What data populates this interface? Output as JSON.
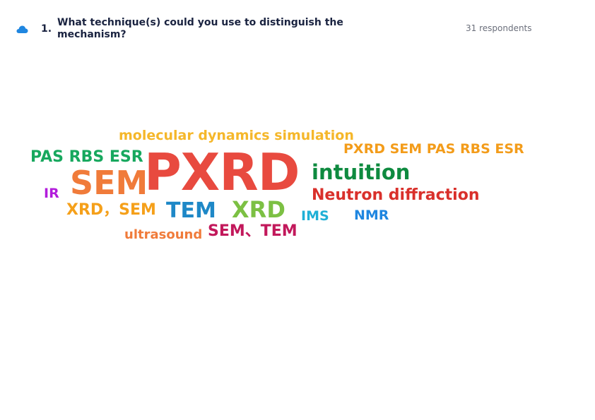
{
  "question": {
    "number": "1.",
    "text": "What technique(s) could you use to distinguish the mechanism?",
    "icon": "word-cloud-icon",
    "respondents": "31 respondents"
  },
  "word_cloud": [
    {
      "text": "molecular dynamics simulation",
      "color": "#f5b72a"
    },
    {
      "text": "PAS RBS ESR",
      "color": "#17a85e"
    },
    {
      "text": "PXRD",
      "color": "#e84a3f"
    },
    {
      "text": "PXRD SEM PAS RBS ESR",
      "color": "#f39c1a"
    },
    {
      "text": "SEM",
      "color": "#f07b3a"
    },
    {
      "text": "intuition",
      "color": "#0e8a3f"
    },
    {
      "text": "IR",
      "color": "#b21ddb"
    },
    {
      "text": "Neutron diffraction",
      "color": "#d9302b"
    },
    {
      "text": "XRD，SEM",
      "color": "#f5a01a"
    },
    {
      "text": "TEM",
      "color": "#1e88c7"
    },
    {
      "text": "XRD",
      "color": "#7cc043"
    },
    {
      "text": "IMS",
      "color": "#1fb0d6"
    },
    {
      "text": "NMR",
      "color": "#1f86e0"
    },
    {
      "text": "ultrasound",
      "color": "#f07b3a"
    },
    {
      "text": "SEM、TEM",
      "color": "#c2185b"
    }
  ],
  "colors": {
    "title": "#1a2340",
    "respondents": "#6b6f7b",
    "icon": "#1f86e0"
  }
}
